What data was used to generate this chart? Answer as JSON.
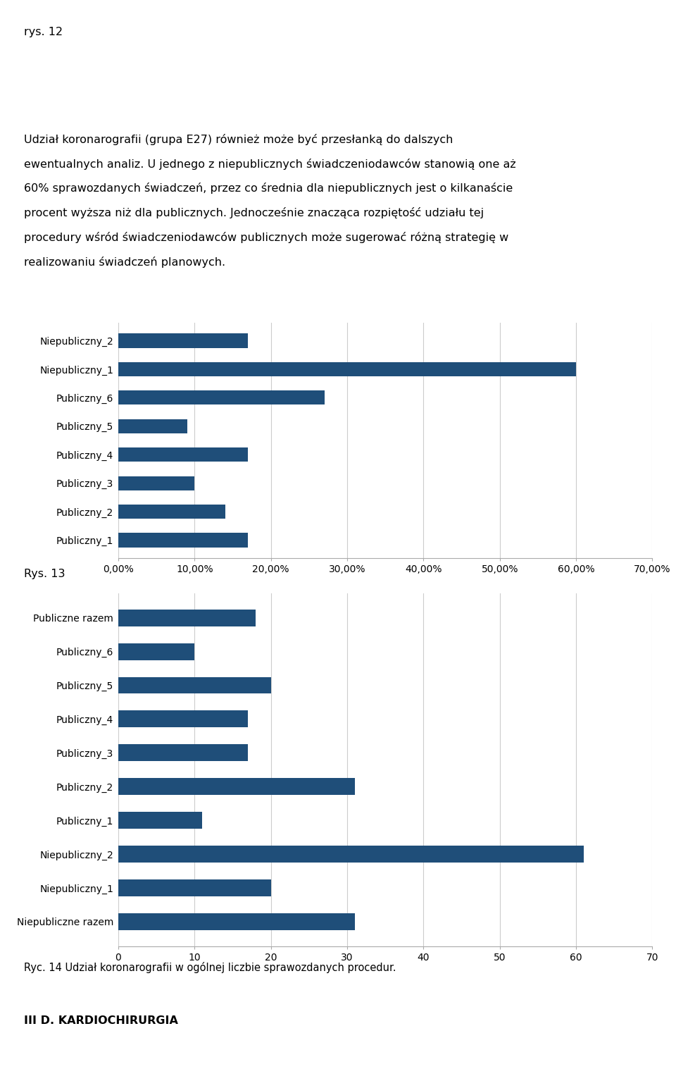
{
  "chart1": {
    "categories": [
      "Niepubliczny_2",
      "Niepubliczny_1",
      "Publiczny_6",
      "Publiczny_5",
      "Publiczny_4",
      "Publiczny_3",
      "Publiczny_2",
      "Publiczny_1"
    ],
    "values": [
      0.17,
      0.6,
      0.27,
      0.09,
      0.17,
      0.1,
      0.14,
      0.17
    ],
    "bar_color": "#1F4E79",
    "xlim": [
      0,
      0.7
    ],
    "xticks": [
      0.0,
      0.1,
      0.2,
      0.3,
      0.4,
      0.5,
      0.6,
      0.7
    ],
    "xtick_labels": [
      "0,00%",
      "10,00%",
      "20,00%",
      "30,00%",
      "40,00%",
      "50,00%",
      "60,00%",
      "70,00%"
    ]
  },
  "chart2": {
    "categories": [
      "Publiczne razem",
      "Publiczny_6",
      "Publiczny_5",
      "Publiczny_4",
      "Publiczny_3",
      "Publiczny_2",
      "Publiczny_1",
      "Niepubliczny_2",
      "Niepubliczny_1",
      "Niepubliczne razem"
    ],
    "values": [
      18,
      10,
      20,
      17,
      17,
      31,
      11,
      61,
      20,
      31
    ],
    "bar_color": "#1F4E79",
    "xlim": [
      0,
      70
    ],
    "xticks": [
      0,
      10,
      20,
      30,
      40,
      50,
      60,
      70
    ],
    "xtick_labels": [
      "0",
      "10",
      "20",
      "30",
      "40",
      "50",
      "60",
      "70"
    ]
  },
  "header_text": "rys. 12",
  "paragraph_line1": "Udział koronarografii (grupa E27) również może być przesłanką do dalszych",
  "paragraph_line2": "ewentualnych analiz. U jednego z niepublicznych świadczeniodawców stanowią one aż",
  "paragraph_line3": "60% sprawozdanych świadczeń, przez co średnia dla niepublicznych jest o kilkanaście",
  "paragraph_line4": "procent wyższa niż dla publicznych. Jednocześnie znacząca rozpiętość udziału tej",
  "paragraph_line5": "procedury wśród świadczeniodawców publicznych może sugerować różną strategię w",
  "paragraph_line6": "realizowaniu świadczeń planowych.",
  "rys13_text": "Rys. 13",
  "caption_text": "Ryc. 14 Udział koronarografii w ogólnej liczbie sprawozdanych procedur.",
  "footer_text": "III D. KARDIOCHIRURGIA",
  "background_color": "#FFFFFF",
  "text_fontsize": 11.5,
  "label_fontsize": 10.5,
  "tick_fontsize": 10,
  "bar_height": 0.5,
  "grid_color": "#CCCCCC",
  "spine_color": "#AAAAAA"
}
